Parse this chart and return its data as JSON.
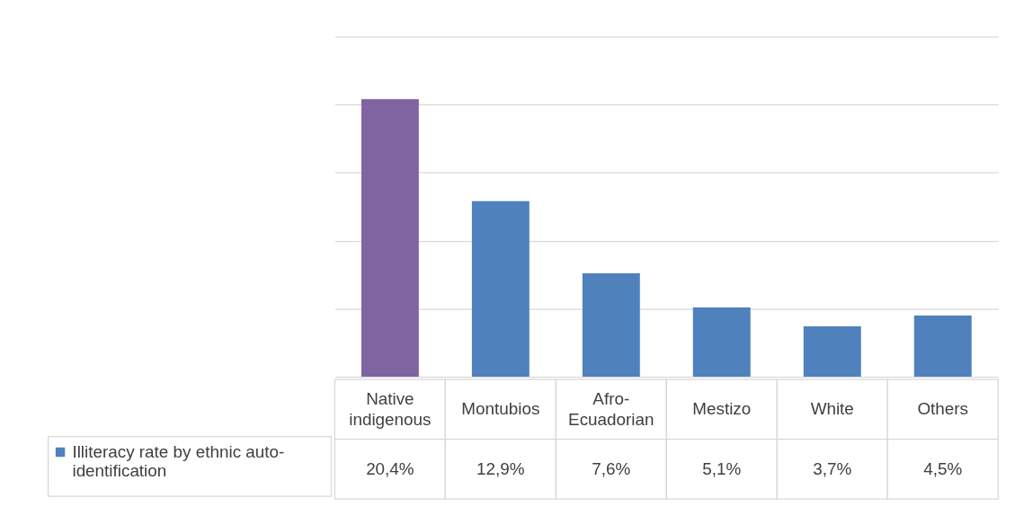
{
  "chart_data": {
    "type": "bar",
    "categories": [
      "Native indigenous",
      "Montubios",
      "Afro-Ecuadorian",
      "Mestizo",
      "White",
      "Others"
    ],
    "series": [
      {
        "name": "Illiteracy rate by ethnic auto-identification",
        "color": "#4f81bd",
        "colors": [
          "#8064a2",
          "#4f81bd",
          "#4f81bd",
          "#4f81bd",
          "#4f81bd",
          "#4f81bd"
        ],
        "values": [
          20.4,
          12.9,
          7.6,
          5.1,
          3.7,
          4.5
        ],
        "value_labels": [
          "20,4%",
          "12,9%",
          "7,6%",
          "5,1%",
          "3,7%",
          "4,5%"
        ]
      }
    ],
    "ylim": [
      0,
      25
    ],
    "yticks": [
      {
        "value": 0,
        "label": null
      },
      {
        "value": 5,
        "label": null
      },
      {
        "value": 10,
        "label": null
      },
      {
        "value": 15,
        "label": null
      },
      {
        "value": 20,
        "label": null
      },
      {
        "value": 25,
        "label": null
      }
    ],
    "grid": "y",
    "tick_labels": false,
    "legend": "bottom left"
  }
}
